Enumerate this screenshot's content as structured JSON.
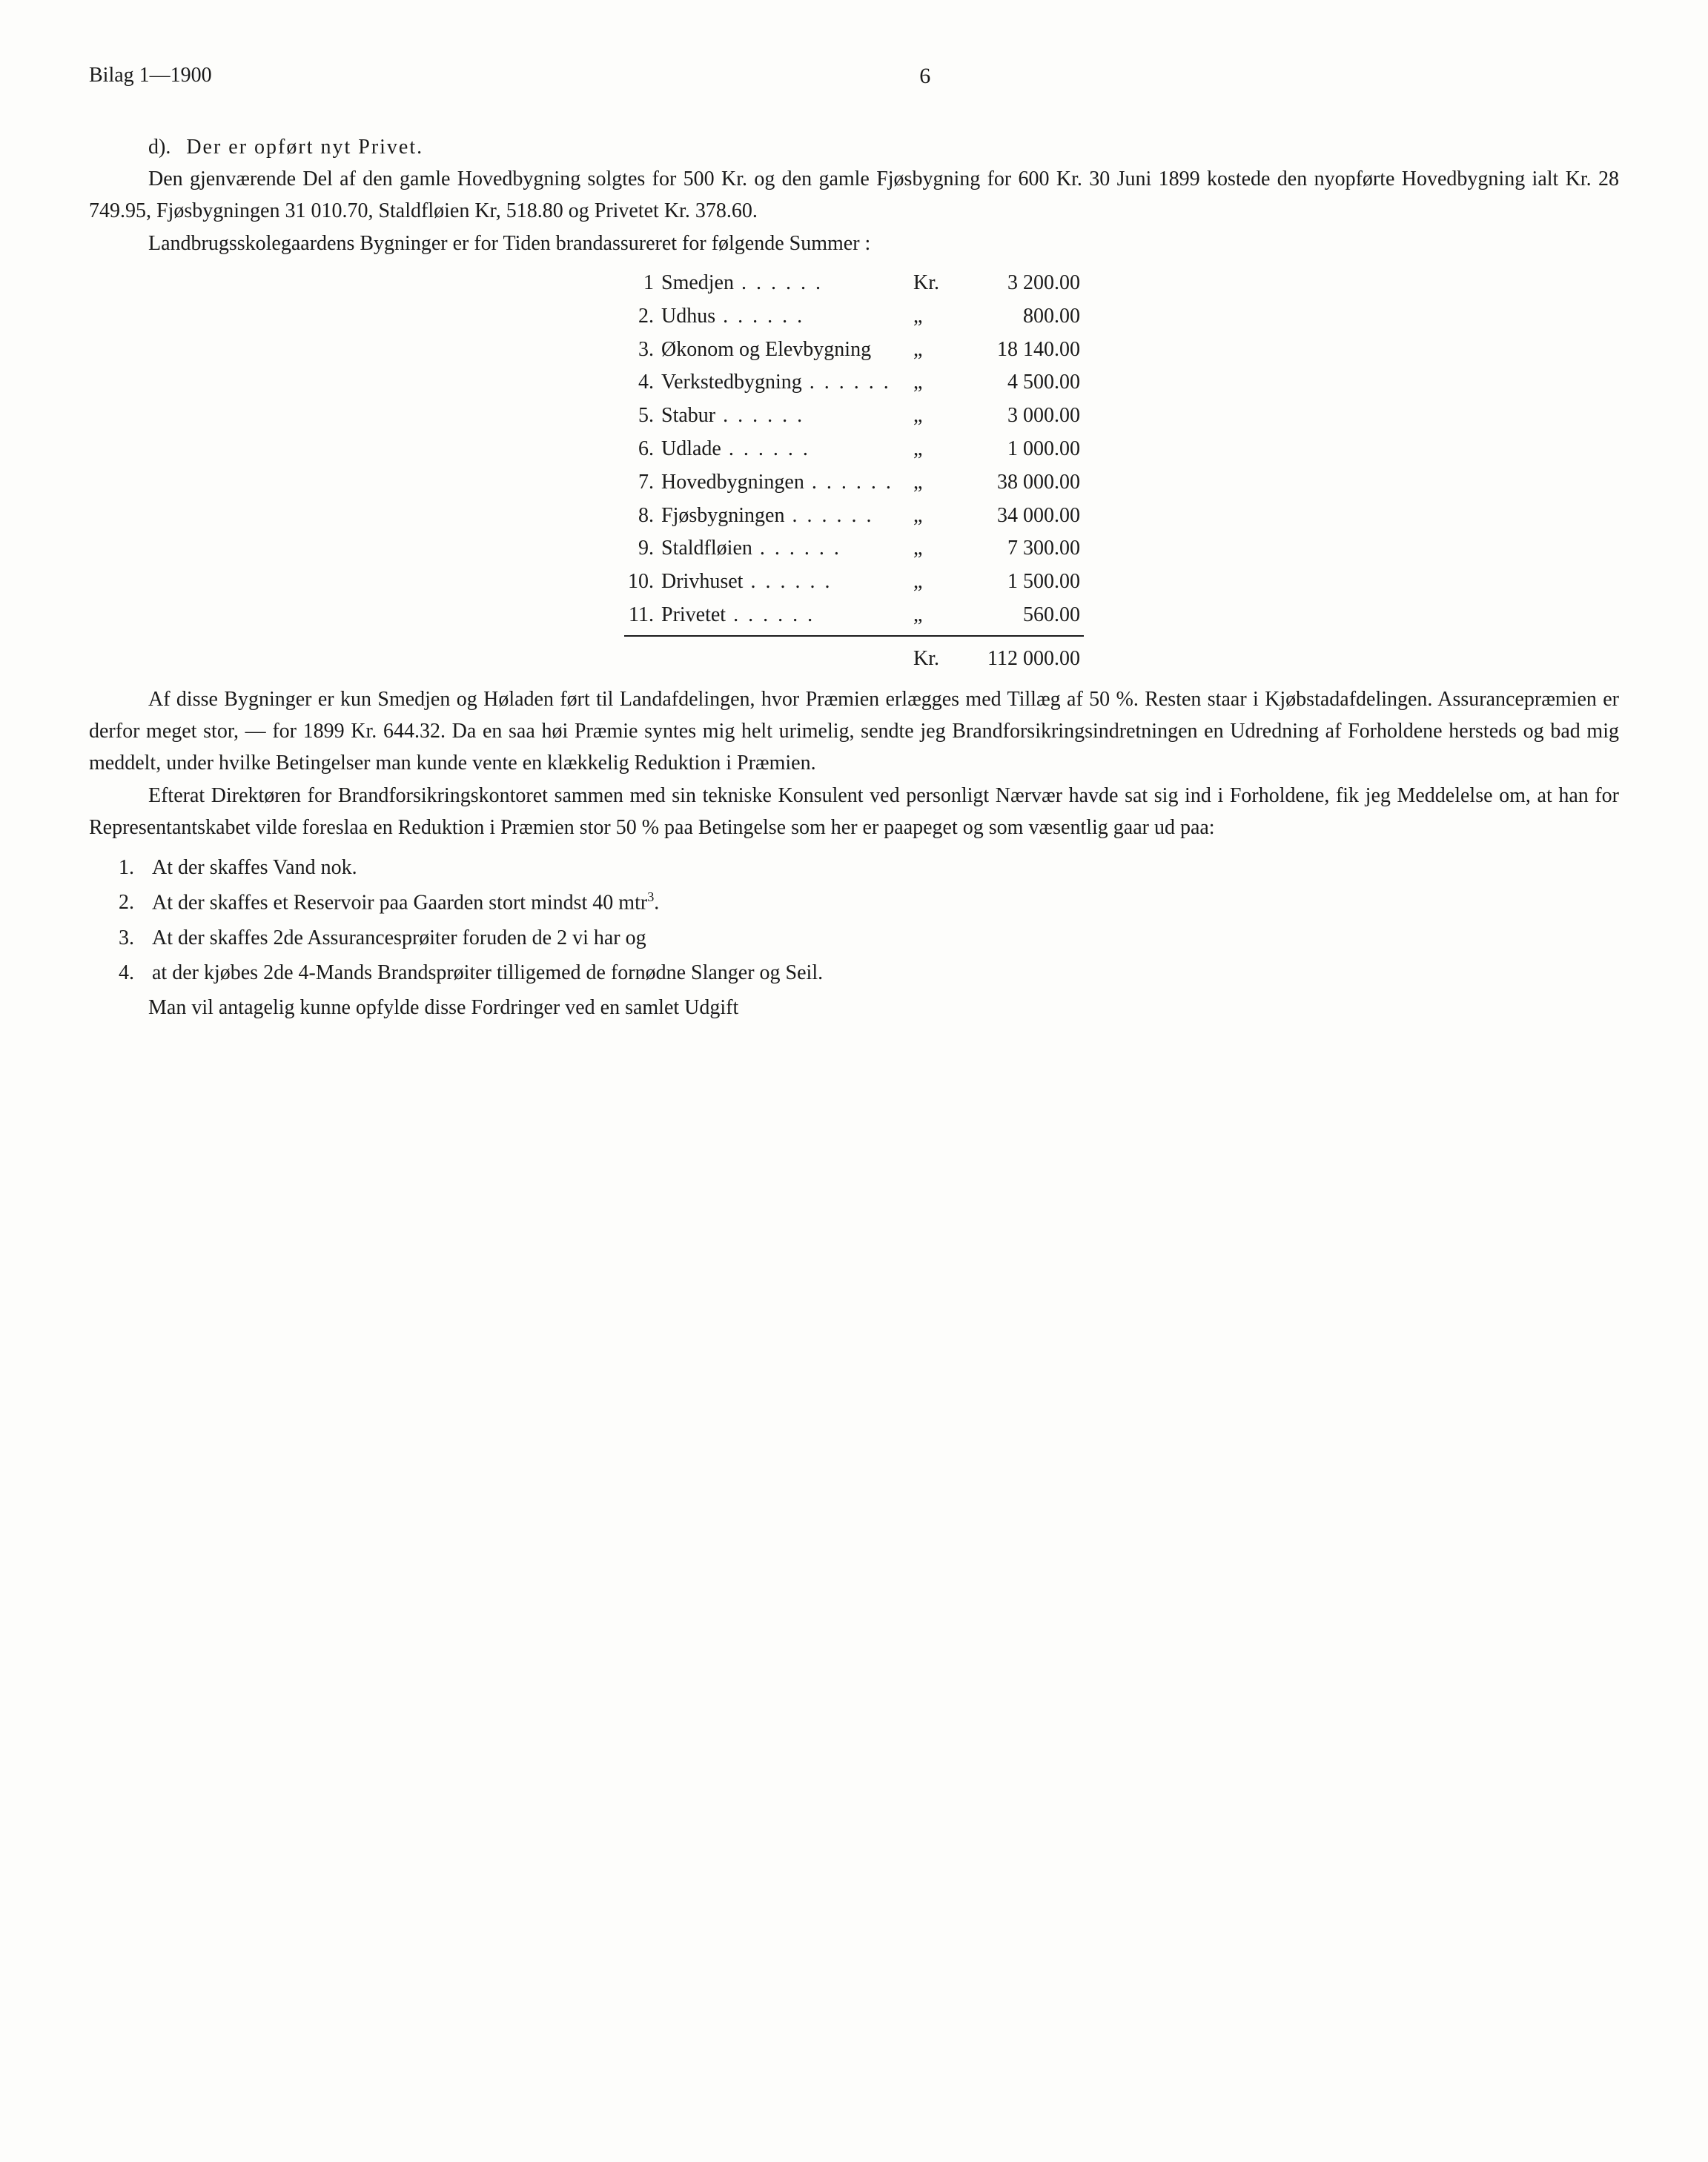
{
  "header": {
    "left": "Bilag 1—1900",
    "page_number": "6"
  },
  "section_d": {
    "marker": "d).",
    "text": "Der er opført nyt Privet."
  },
  "para1": "Den gjenværende Del af den gamle Hovedbygning solgtes for 500 Kr. og den gamle Fjøsbygning for 600 Kr. 30 Juni 1899 kostede den nyopførte Hovedbygning ialt Kr. 28 749.95, Fjøsbygningen 31 010.70, Staldfløien Kr, 518.80 og Privetet Kr. 378.60.",
  "para2": "Landbrugsskolegaardens Bygninger er for Tiden brandassureret for følgende Summer :",
  "table": {
    "rows": [
      {
        "num": "1",
        "label": "Smedjen",
        "currency": "Kr.",
        "value": "3 200.00"
      },
      {
        "num": "2.",
        "label": "Udhus",
        "currency": "„",
        "value": "800.00"
      },
      {
        "num": "3.",
        "label": "Økonom og Elevbygning",
        "currency": "„",
        "value": "18 140.00"
      },
      {
        "num": "4.",
        "label": "Verkstedbygning",
        "currency": "„",
        "value": "4 500.00"
      },
      {
        "num": "5.",
        "label": "Stabur",
        "currency": "„",
        "value": "3 000.00"
      },
      {
        "num": "6.",
        "label": "Udlade",
        "currency": "„",
        "value": "1 000.00"
      },
      {
        "num": "7.",
        "label": "Hovedbygningen",
        "currency": "„",
        "value": "38 000.00"
      },
      {
        "num": "8.",
        "label": "Fjøsbygningen",
        "currency": "„",
        "value": "34 000.00"
      },
      {
        "num": "9.",
        "label": "Staldfløien",
        "currency": "„",
        "value": "7 300.00"
      },
      {
        "num": "10.",
        "label": "Drivhuset",
        "currency": "„",
        "value": "1 500.00"
      },
      {
        "num": "11.",
        "label": "Privetet",
        "currency": "„",
        "value": "560.00"
      }
    ],
    "total": {
      "currency": "Kr.",
      "value": "112 000.00"
    }
  },
  "para3": "Af disse Bygninger er kun Smedjen og Høladen ført til Landafdelingen, hvor Præmien erlægges med Tillæg af 50 %. Resten staar i Kjøbstadafdelingen. Assurancepræmien er derfor meget stor, — for 1899 Kr. 644.32. Da en saa høi Præmie syntes mig helt urimelig, sendte jeg Brandforsikringsindretningen en Udredning af Forholdene hersteds og bad mig meddelt, under hvilke Betingelser man kunde vente en klækkelig Reduktion i Præmien.",
  "para4": "Efterat Direktøren for Brandforsikringskontoret sammen med sin tekniske Konsulent ved personligt Nærvær havde sat sig ind i Forholdene, fik jeg Meddelelse om, at han for Representantskabet vilde foreslaa en Reduktion i Præmien stor 50 % paa Betingelse som her er paapeget og som væsentlig gaar ud paa:",
  "list": [
    {
      "num": "1.",
      "text": "At der skaffes Vand nok."
    },
    {
      "num": "2.",
      "text_html": "At der skaffes et Reservoir paa Gaarden stort mindst 40 mtr<sup>3</sup>."
    },
    {
      "num": "3.",
      "text": "At der skaffes 2de Assurancesprøiter foruden de 2 vi har og"
    },
    {
      "num": "4.",
      "text": "at der kjøbes 2de 4-Mands Brandsprøiter tilligemed de fornødne Slanger og Seil."
    }
  ],
  "para5": "Man vil antagelig kunne opfylde disse Fordringer ved en samlet Udgift"
}
